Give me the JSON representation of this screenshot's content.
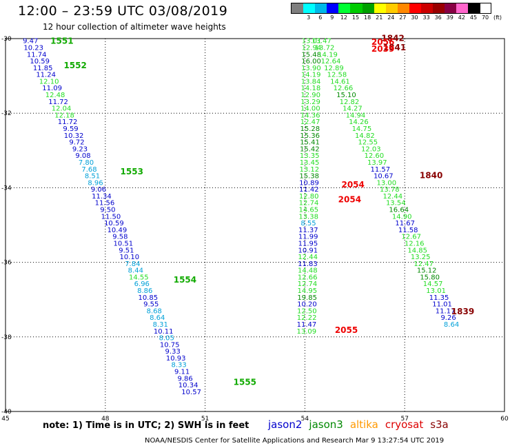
{
  "header": {
    "title": "12:00 – 23:59 UTC 03/08/2019",
    "subtitle": "12 hour collection of altimeter wave heights"
  },
  "colorbar": {
    "colors": [
      "#7f7f7f",
      "#00ffff",
      "#00b8e8",
      "#0000ff",
      "#00ff33",
      "#00cc00",
      "#00a000",
      "#ffff00",
      "#ffcc00",
      "#ff8800",
      "#ff0000",
      "#cc0000",
      "#990000",
      "#880044",
      "#ff66cc",
      "#000000"
    ],
    "tick_labels": [
      "",
      "3",
      "6",
      "9",
      "12",
      "15",
      "18",
      "21",
      "24",
      "27",
      "30",
      "33",
      "36",
      "39",
      "42",
      "45",
      "70"
    ],
    "unit": "(ft)"
  },
  "note": "note:  1) Time is in UTC;  2) SWH is in feet",
  "legend": [
    {
      "name": "jason2",
      "color": "#0000cc"
    },
    {
      "name": "jason3",
      "color": "#008800"
    },
    {
      "name": "altika",
      "color": "#ff9900"
    },
    {
      "name": "cryosat",
      "color": "#dd0000"
    },
    {
      "name": "s3a",
      "color": "#880000"
    }
  ],
  "footer": "NOAA/NESDIS Center for Satellite Applications and Research    Mar  9 13:27:54 UTC 2019",
  "chart_data": {
    "type": "scatter",
    "xlim": [
      45,
      60
    ],
    "ylim": [
      -40,
      -30
    ],
    "x_ticks": [
      "45",
      "48",
      "51",
      "54",
      "57",
      "60"
    ],
    "y_ticks": [
      "-30",
      "-32",
      "-34",
      "-36",
      "-38",
      "-40"
    ],
    "grid": true,
    "colors": {
      "c1": "#0000cc",
      "c2": "#00a0d8",
      "c3": "#22dd22",
      "c4": "#008800",
      "red": "#ee0000",
      "dark": "#880000",
      "green": "#11aa00",
      "lgreen": "#33ff33"
    },
    "tracks": [
      {
        "name": "track1",
        "x0": 45.75,
        "y0": -30.05,
        "dx": 0.093,
        "dy": 0.181,
        "points": [
          {
            "v": "9.47",
            "c": "c1"
          },
          {
            "v": "10.23",
            "c": "c1"
          },
          {
            "v": "11.74",
            "c": "c1"
          },
          {
            "v": "10.59",
            "c": "c1"
          },
          {
            "v": "11.85",
            "c": "c1"
          },
          {
            "v": "11.24",
            "c": "c1"
          },
          {
            "v": "12.10",
            "c": "c3"
          },
          {
            "v": "11.09",
            "c": "c1"
          },
          {
            "v": "12.48",
            "c": "c3"
          },
          {
            "v": "11.72",
            "c": "c1"
          },
          {
            "v": "12.04",
            "c": "c3"
          },
          {
            "v": "12.18",
            "c": "c3"
          },
          {
            "v": "11.72",
            "c": "c1"
          },
          {
            "v": "9.59",
            "c": "c1"
          },
          {
            "v": "10.32",
            "c": "c1"
          },
          {
            "v": "9.72",
            "c": "c1"
          },
          {
            "v": "9.23",
            "c": "c1"
          },
          {
            "v": "9.08",
            "c": "c1"
          },
          {
            "v": "7.80",
            "c": "c2"
          },
          {
            "v": "7.68",
            "c": "c2"
          },
          {
            "v": "8.51",
            "c": "c2"
          },
          {
            "v": "8.96",
            "c": "c2"
          },
          {
            "v": "9.06",
            "c": "c1"
          },
          {
            "v": "11.34",
            "c": "c1"
          },
          {
            "v": "11.56",
            "c": "c1"
          },
          {
            "v": "9.50",
            "c": "c1"
          },
          {
            "v": "11.50",
            "c": "c1"
          },
          {
            "v": "10.59",
            "c": "c1"
          },
          {
            "v": "10.49",
            "c": "c1"
          },
          {
            "v": "9.58",
            "c": "c1"
          },
          {
            "v": "10.51",
            "c": "c1"
          },
          {
            "v": "9.51",
            "c": "c1"
          },
          {
            "v": "10.10",
            "c": "c1"
          },
          {
            "v": "7.84",
            "c": "c2"
          },
          {
            "v": "8.44",
            "c": "c2"
          },
          {
            "v": "14.55",
            "c": "c3"
          },
          {
            "v": "6.96",
            "c": "c2"
          },
          {
            "v": "8.86",
            "c": "c2"
          },
          {
            "v": "10.85",
            "c": "c1"
          },
          {
            "v": "9.55",
            "c": "c1"
          },
          {
            "v": "8.68",
            "c": "c2"
          },
          {
            "v": "8.64",
            "c": "c2"
          },
          {
            "v": "8.31",
            "c": "c2"
          },
          {
            "v": "10.11",
            "c": "c1"
          },
          {
            "v": "8.05",
            "c": "c2"
          },
          {
            "v": "10.75",
            "c": "c1"
          },
          {
            "v": "9.33",
            "c": "c1"
          },
          {
            "v": "10.93",
            "c": "c1"
          },
          {
            "v": "8.33",
            "c": "c2"
          },
          {
            "v": "9.11",
            "c": "c1"
          },
          {
            "v": "9.86",
            "c": "c1"
          },
          {
            "v": "10.34",
            "c": "c1"
          },
          {
            "v": "10.57",
            "c": "c1"
          }
        ]
      },
      {
        "name": "track2",
        "x0": 54.2,
        "y0": -30.05,
        "dx": -0.0035,
        "dy": 0.181,
        "points": [
          {
            "v": "13.01",
            "c": "c3"
          },
          {
            "v": "12.94",
            "c": "c3"
          },
          {
            "v": "15.48",
            "c": "c4"
          },
          {
            "v": "16.00",
            "c": "c4"
          },
          {
            "v": "13.90",
            "c": "c3"
          },
          {
            "v": "14.19",
            "c": "c3"
          },
          {
            "v": "13.84",
            "c": "c3"
          },
          {
            "v": "14.18",
            "c": "c3"
          },
          {
            "v": "12.90",
            "c": "c3"
          },
          {
            "v": "13.29",
            "c": "c3"
          },
          {
            "v": "14.00",
            "c": "c3"
          },
          {
            "v": "14.36",
            "c": "c3"
          },
          {
            "v": "12.47",
            "c": "c3"
          },
          {
            "v": "15.28",
            "c": "c4"
          },
          {
            "v": "15.36",
            "c": "c4"
          },
          {
            "v": "15.41",
            "c": "c4"
          },
          {
            "v": "15.42",
            "c": "c4"
          },
          {
            "v": "13.35",
            "c": "c3"
          },
          {
            "v": "13.45",
            "c": "c3"
          },
          {
            "v": "13.12",
            "c": "c3"
          },
          {
            "v": "15.38",
            "c": "c4"
          },
          {
            "v": "10.89",
            "c": "c1"
          },
          {
            "v": "11.42",
            "c": "c1"
          },
          {
            "v": "12.80",
            "c": "c3"
          },
          {
            "v": "12.74",
            "c": "c3"
          },
          {
            "v": "14.65",
            "c": "c3"
          },
          {
            "v": "13.38",
            "c": "c3"
          },
          {
            "v": "8.55",
            "c": "c2"
          },
          {
            "v": "11.37",
            "c": "c1"
          },
          {
            "v": "11.99",
            "c": "c1"
          },
          {
            "v": "11.95",
            "c": "c1"
          },
          {
            "v": "10.91",
            "c": "c1"
          },
          {
            "v": "12.44",
            "c": "c3"
          },
          {
            "v": "11.83",
            "c": "c1"
          },
          {
            "v": "14.48",
            "c": "c3"
          },
          {
            "v": "12.66",
            "c": "c3"
          },
          {
            "v": "12.74",
            "c": "c3"
          },
          {
            "v": "14.95",
            "c": "c3"
          },
          {
            "v": "19.85",
            "c": "c4"
          },
          {
            "v": "10.20",
            "c": "c1"
          },
          {
            "v": "12.50",
            "c": "c3"
          },
          {
            "v": "12.22",
            "c": "c3"
          },
          {
            "v": "11.47",
            "c": "c1"
          },
          {
            "v": "13.09",
            "c": "c3"
          }
        ]
      },
      {
        "name": "track3",
        "x0": 54.5,
        "y0": -30.05,
        "dx": 0.093,
        "dy": 0.181,
        "points": [
          {
            "v": "13.47",
            "c": "c3"
          },
          {
            "v": "13.72",
            "c": "c3"
          },
          {
            "v": "14.19",
            "c": "c3"
          },
          {
            "v": "12.64",
            "c": "c3"
          },
          {
            "v": "12.89",
            "c": "c3"
          },
          {
            "v": "12.58",
            "c": "c3"
          },
          {
            "v": "14.61",
            "c": "c3"
          },
          {
            "v": "12.66",
            "c": "c3"
          },
          {
            "v": "15.10",
            "c": "c4"
          },
          {
            "v": "12.82",
            "c": "c3"
          },
          {
            "v": "14.27",
            "c": "c3"
          },
          {
            "v": "14.94",
            "c": "c3"
          },
          {
            "v": "14.26",
            "c": "c3"
          },
          {
            "v": "14.75",
            "c": "c3"
          },
          {
            "v": "14.82",
            "c": "c3"
          },
          {
            "v": "12.55",
            "c": "c3"
          },
          {
            "v": "12.03",
            "c": "c3"
          },
          {
            "v": "12.60",
            "c": "c3"
          },
          {
            "v": "13.97",
            "c": "c3"
          },
          {
            "v": "11.57",
            "c": "c1"
          },
          {
            "v": "10.67",
            "c": "c1"
          },
          {
            "v": "13.00",
            "c": "c3"
          },
          {
            "v": "13.78",
            "c": "c3"
          },
          {
            "v": "12.44",
            "c": "c3"
          },
          {
            "v": "13.54",
            "c": "c3"
          },
          {
            "v": "16.64",
            "c": "c4"
          },
          {
            "v": "14.90",
            "c": "c3"
          },
          {
            "v": "11.67",
            "c": "c1"
          },
          {
            "v": "11.58",
            "c": "c1"
          },
          {
            "v": "12.67",
            "c": "c3"
          },
          {
            "v": "12.16",
            "c": "c3"
          },
          {
            "v": "14.85",
            "c": "c3"
          },
          {
            "v": "13.25",
            "c": "c3"
          },
          {
            "v": "12.47",
            "c": "c3"
          },
          {
            "v": "15.12",
            "c": "c4"
          },
          {
            "v": "15.80",
            "c": "c4"
          },
          {
            "v": "14.57",
            "c": "c3"
          },
          {
            "v": "13.01",
            "c": "c3"
          },
          {
            "v": "11.35",
            "c": "c1"
          },
          {
            "v": "11.01",
            "c": "c1"
          },
          {
            "v": "11.17",
            "c": "c1"
          },
          {
            "v": "9.26",
            "c": "c1"
          },
          {
            "v": "8.64",
            "c": "c2"
          }
        ]
      }
    ],
    "time_labels": [
      {
        "text": "1551",
        "x": 46.35,
        "y": -30.05,
        "c": "green"
      },
      {
        "text": "1552",
        "x": 46.75,
        "y": -30.7,
        "c": "green"
      },
      {
        "text": "1553",
        "x": 48.45,
        "y": -33.55,
        "c": "green"
      },
      {
        "text": "1554",
        "x": 50.05,
        "y": -36.45,
        "c": "green"
      },
      {
        "text": "1555",
        "x": 51.85,
        "y": -39.2,
        "c": "green"
      },
      {
        "text": "1842",
        "x": 56.3,
        "y": -29.97,
        "c": "dark"
      },
      {
        "text": "2056",
        "x": 56.0,
        "y": -30.07,
        "c": "red"
      },
      {
        "text": "1841",
        "x": 56.35,
        "y": -30.22,
        "c": "dark"
      },
      {
        "text": "2039",
        "x": 56.0,
        "y": -30.26,
        "c": "red"
      },
      {
        "text": "1840",
        "x": 57.45,
        "y": -33.65,
        "c": "dark"
      },
      {
        "text": "2054",
        "x": 55.1,
        "y": -33.9,
        "c": "red"
      },
      {
        "text": "2054",
        "x": 55.0,
        "y": -34.3,
        "c": "red"
      },
      {
        "text": "1839",
        "x": 58.4,
        "y": -37.3,
        "c": "dark"
      },
      {
        "text": "2055",
        "x": 54.9,
        "y": -37.8,
        "c": "red"
      }
    ]
  }
}
